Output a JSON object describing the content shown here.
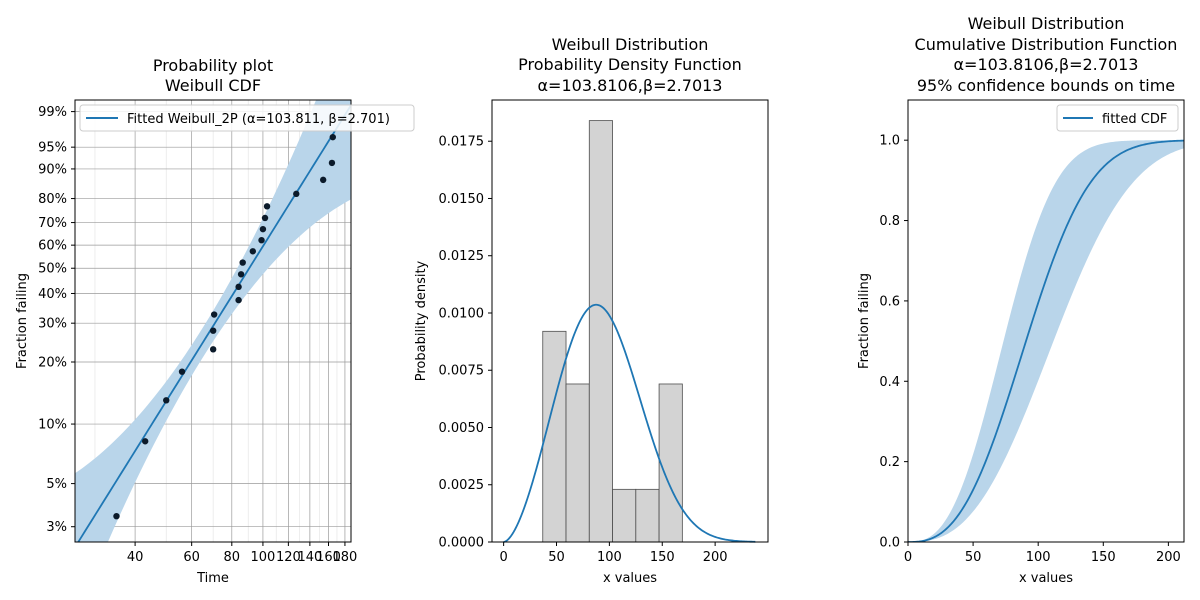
{
  "colors": {
    "line": "#1f77b4",
    "band": "#b9d5ea",
    "points": "#0b1a2a",
    "hist_fill": "#d3d3d3",
    "hist_edge": "#4d4d4d",
    "grid_major": "#9a9a9a",
    "grid_minor": "#e6e6e6",
    "axes": "#000000"
  },
  "chart_data": [
    {
      "type": "scatter",
      "title": "Probability plot\nWeibull CDF",
      "xlabel": "Time",
      "ylabel": "Fraction failing",
      "x_scale": "log",
      "y_scale": "weibull",
      "xlim": [
        26,
        188
      ],
      "ylim": [
        0.025,
        0.995
      ],
      "xticks": [
        40,
        60,
        80,
        100,
        120,
        140,
        160,
        180
      ],
      "xtick_labels": [
        "40",
        "60",
        "80",
        "100",
        "120",
        "140",
        "160",
        "180"
      ],
      "yticks": [
        0.03,
        0.05,
        0.1,
        0.2,
        0.3,
        0.4,
        0.5,
        0.6,
        0.7,
        0.8,
        0.9,
        0.95,
        0.99
      ],
      "ytick_labels": [
        "3%",
        "5%",
        "10%",
        "20%",
        "30%",
        "40%",
        "50%",
        "60%",
        "70%",
        "80%",
        "90%",
        "95%",
        "99%"
      ],
      "legend": {
        "position": "top-left",
        "entries": [
          "Fitted Weibull_2P (α=103.811, β=2.701)"
        ]
      },
      "fit": {
        "alpha": 103.811,
        "beta": 2.701
      },
      "grid": true,
      "points": [
        {
          "x": 35,
          "y": 0.034
        },
        {
          "x": 43,
          "y": 0.082
        },
        {
          "x": 50,
          "y": 0.131
        },
        {
          "x": 56,
          "y": 0.18
        },
        {
          "x": 70,
          "y": 0.229
        },
        {
          "x": 70,
          "y": 0.278
        },
        {
          "x": 70.5,
          "y": 0.327
        },
        {
          "x": 84,
          "y": 0.376
        },
        {
          "x": 84,
          "y": 0.425
        },
        {
          "x": 85.5,
          "y": 0.475
        },
        {
          "x": 86.5,
          "y": 0.524
        },
        {
          "x": 93,
          "y": 0.573
        },
        {
          "x": 99,
          "y": 0.622
        },
        {
          "x": 100,
          "y": 0.671
        },
        {
          "x": 101.5,
          "y": 0.72
        },
        {
          "x": 103,
          "y": 0.769
        },
        {
          "x": 127,
          "y": 0.818
        },
        {
          "x": 154,
          "y": 0.867
        },
        {
          "x": 164,
          "y": 0.916
        },
        {
          "x": 165,
          "y": 0.966
        }
      ]
    },
    {
      "type": "bar",
      "title": "Weibull Distribution\nProbability Density Function\nα=103.8106,β=2.7013",
      "xlabel": "x values",
      "ylabel": "Probability density",
      "xlim": [
        -11,
        250
      ],
      "ylim": [
        0,
        0.0193
      ],
      "xticks": [
        0,
        50,
        100,
        150,
        200
      ],
      "xtick_labels": [
        "0",
        "50",
        "100",
        "150",
        "200"
      ],
      "yticks": [
        0,
        0.0025,
        0.005,
        0.0075,
        0.01,
        0.0125,
        0.015,
        0.0175
      ],
      "ytick_labels": [
        "0.0000",
        "0.0025",
        "0.0050",
        "0.0075",
        "0.0100",
        "0.0125",
        "0.0150",
        "0.0175"
      ],
      "bins": [
        {
          "x0": 37,
          "x1": 59,
          "value": 0.0092
        },
        {
          "x0": 59,
          "x1": 81,
          "value": 0.0069
        },
        {
          "x0": 81,
          "x1": 103,
          "value": 0.0184
        },
        {
          "x0": 103,
          "x1": 125,
          "value": 0.0023
        },
        {
          "x0": 125,
          "x1": 147,
          "value": 0.0023
        },
        {
          "x0": 147,
          "x1": 169,
          "value": 0.0069
        }
      ],
      "pdf": {
        "alpha": 103.8106,
        "beta": 2.7013,
        "xmax": 238
      },
      "grid": false
    },
    {
      "type": "line",
      "title": "Weibull Distribution\nCumulative Distribution Function\nα=103.8106,β=2.7013\n95% confidence bounds on time",
      "xlabel": "x values",
      "ylabel": "Fraction failing",
      "xlim": [
        0,
        212
      ],
      "ylim": [
        0,
        1.1
      ],
      "xticks": [
        0,
        50,
        100,
        150,
        200
      ],
      "xtick_labels": [
        "0",
        "50",
        "100",
        "150",
        "200"
      ],
      "yticks": [
        0,
        0.2,
        0.4,
        0.6,
        0.8,
        1.0
      ],
      "ytick_labels": [
        "0.0",
        "0.2",
        "0.4",
        "0.6",
        "0.8",
        "1.0"
      ],
      "legend": {
        "position": "top-right",
        "entries": [
          "fitted CDF"
        ]
      },
      "cdf": {
        "alpha": 103.8106,
        "beta": 2.7013,
        "xmax": 212
      },
      "band": {
        "lower_alpha": 84.0,
        "upper_alpha": 128.0
      },
      "grid": false
    }
  ]
}
